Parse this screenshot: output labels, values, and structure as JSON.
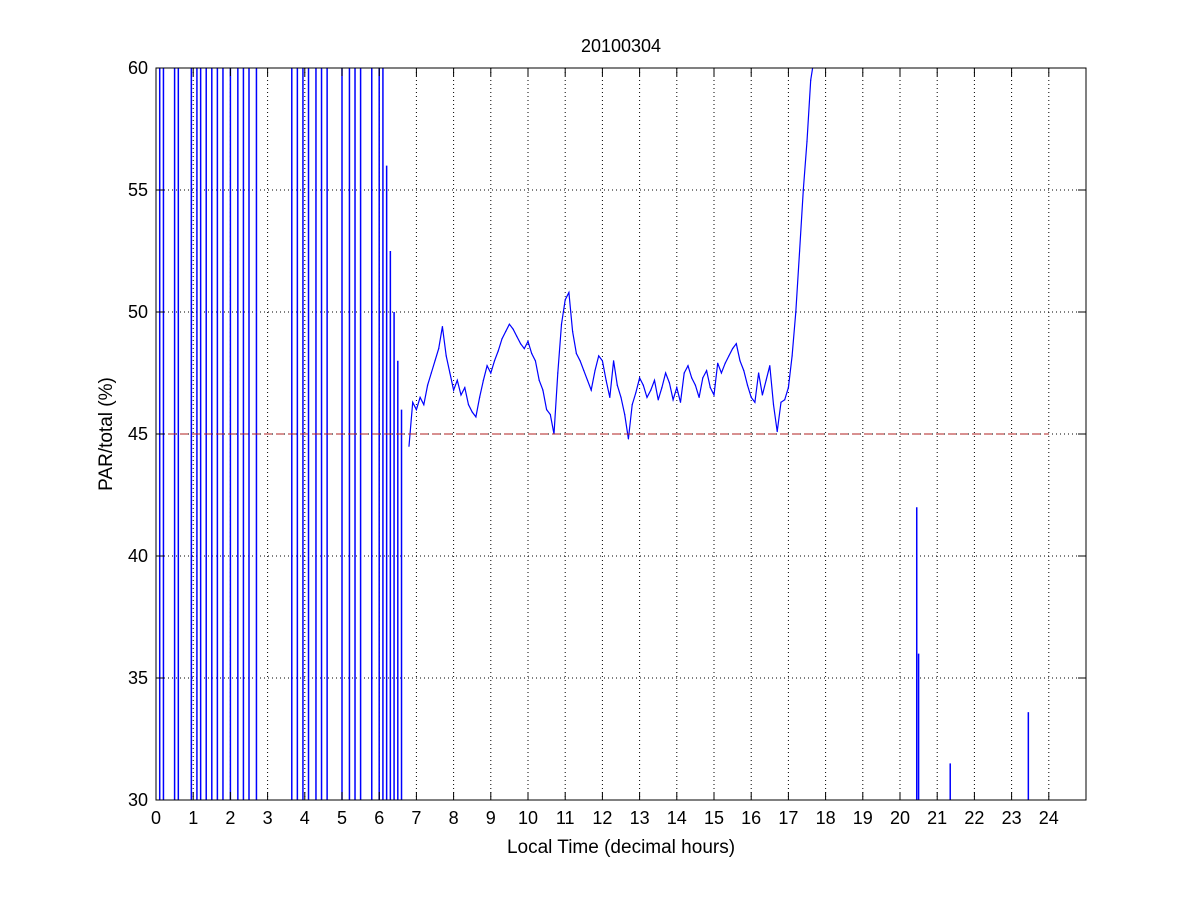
{
  "chart_data": {
    "type": "line",
    "title": "20100304",
    "xlabel": "Local Time (decimal hours)",
    "ylabel": "PAR/total (%)",
    "xlim": [
      0,
      25
    ],
    "ylim": [
      30,
      60
    ],
    "xticks": [
      "0",
      "1",
      "2",
      "3",
      "4",
      "5",
      "6",
      "7",
      "8",
      "9",
      "10",
      "11",
      "12",
      "13",
      "14",
      "15",
      "16",
      "17",
      "18",
      "19",
      "20",
      "21",
      "22",
      "23",
      "24"
    ],
    "yticks": [
      "30",
      "35",
      "40",
      "45",
      "50",
      "55",
      "60"
    ],
    "grid": true,
    "grid_style": "dotted",
    "colors": {
      "series": "#0000ff",
      "reference": "#b22222",
      "axes": "#000000",
      "grid": "#000000"
    },
    "series": [
      {
        "style": "solid",
        "color": "#0000ff",
        "x": [
          6.8,
          6.9,
          7.0,
          7.1,
          7.2,
          7.3,
          7.4,
          7.5,
          7.6,
          7.7,
          7.8,
          7.9,
          8.0,
          8.1,
          8.2,
          8.3,
          8.4,
          8.5,
          8.6,
          8.7,
          8.8,
          8.9,
          9.0,
          9.1,
          9.2,
          9.3,
          9.4,
          9.5,
          9.6,
          9.7,
          9.8,
          9.9,
          10.0,
          10.1,
          10.2,
          10.3,
          10.4,
          10.5,
          10.6,
          10.7,
          10.8,
          10.9,
          11.0,
          11.1,
          11.2,
          11.3,
          11.4,
          11.5,
          11.6,
          11.7,
          11.8,
          11.9,
          12.0,
          12.1,
          12.2,
          12.3,
          12.4,
          12.5,
          12.6,
          12.7,
          12.8,
          12.9,
          13.0,
          13.1,
          13.2,
          13.3,
          13.4,
          13.5,
          13.6,
          13.7,
          13.8,
          13.9,
          14.0,
          14.1,
          14.2,
          14.3,
          14.4,
          14.5,
          14.6,
          14.7,
          14.8,
          14.9,
          15.0,
          15.1,
          15.2,
          15.3,
          15.4,
          15.5,
          15.6,
          15.7,
          15.8,
          15.9,
          16.0,
          16.1,
          16.2,
          16.3,
          16.4,
          16.5,
          16.6,
          16.7,
          16.8,
          16.9,
          17.0,
          17.1,
          17.2,
          17.3,
          17.4,
          17.5,
          17.6,
          17.65
        ],
        "y": [
          44.5,
          46.3,
          46.0,
          46.5,
          46.2,
          47.0,
          47.5,
          48.0,
          48.5,
          49.4,
          48.2,
          47.5,
          46.8,
          47.2,
          46.6,
          46.9,
          46.2,
          45.9,
          45.7,
          46.5,
          47.2,
          47.8,
          47.5,
          48.0,
          48.4,
          48.9,
          49.2,
          49.5,
          49.3,
          49.0,
          48.7,
          48.5,
          48.8,
          48.3,
          48.0,
          47.2,
          46.8,
          46.0,
          45.8,
          45.0,
          47.5,
          49.5,
          50.5,
          50.8,
          49.2,
          48.3,
          48.0,
          47.6,
          47.2,
          46.8,
          47.6,
          48.2,
          48.0,
          47.2,
          46.5,
          48.0,
          47.0,
          46.5,
          45.8,
          44.8,
          46.2,
          46.7,
          47.3,
          47.0,
          46.5,
          46.8,
          47.2,
          46.4,
          46.9,
          47.5,
          47.1,
          46.4,
          46.9,
          46.3,
          47.5,
          47.8,
          47.3,
          47.0,
          46.5,
          47.3,
          47.6,
          46.9,
          46.6,
          47.9,
          47.5,
          47.9,
          48.2,
          48.5,
          48.7,
          48.0,
          47.6,
          47.0,
          46.5,
          46.3,
          47.5,
          46.6,
          47.2,
          47.8,
          46.2,
          45.1,
          46.3,
          46.4,
          46.9,
          48.2,
          50.0,
          52.5,
          55.0,
          57.0,
          59.5,
          60.0
        ]
      },
      {
        "style": "spikes",
        "color": "#0000ff",
        "x": [
          0.1,
          0.2,
          0.5,
          0.6,
          0.95,
          1.1,
          1.2,
          1.35,
          1.5,
          1.65,
          1.8,
          2.0,
          2.2,
          2.35,
          2.5,
          2.7,
          3.65,
          3.8,
          3.95,
          4.1,
          4.3,
          4.45,
          4.6,
          5.0,
          5.2,
          5.35,
          5.5,
          5.8,
          6.0,
          6.1,
          6.2,
          6.3,
          6.4,
          6.5,
          6.6,
          20.45,
          20.5,
          21.35,
          23.45
        ],
        "y": [
          60,
          60,
          60,
          60,
          60,
          60,
          60,
          60,
          60,
          60,
          60,
          60,
          60,
          60,
          60,
          60,
          60,
          60,
          60,
          60,
          60,
          60,
          60,
          60,
          60,
          60,
          60,
          60,
          60,
          60,
          56,
          52.5,
          50,
          48,
          46,
          42,
          36,
          31.5,
          33.6
        ]
      },
      {
        "style": "dashed",
        "color": "#b22222",
        "x": [
          0,
          24
        ],
        "y": [
          45,
          45
        ]
      }
    ]
  }
}
